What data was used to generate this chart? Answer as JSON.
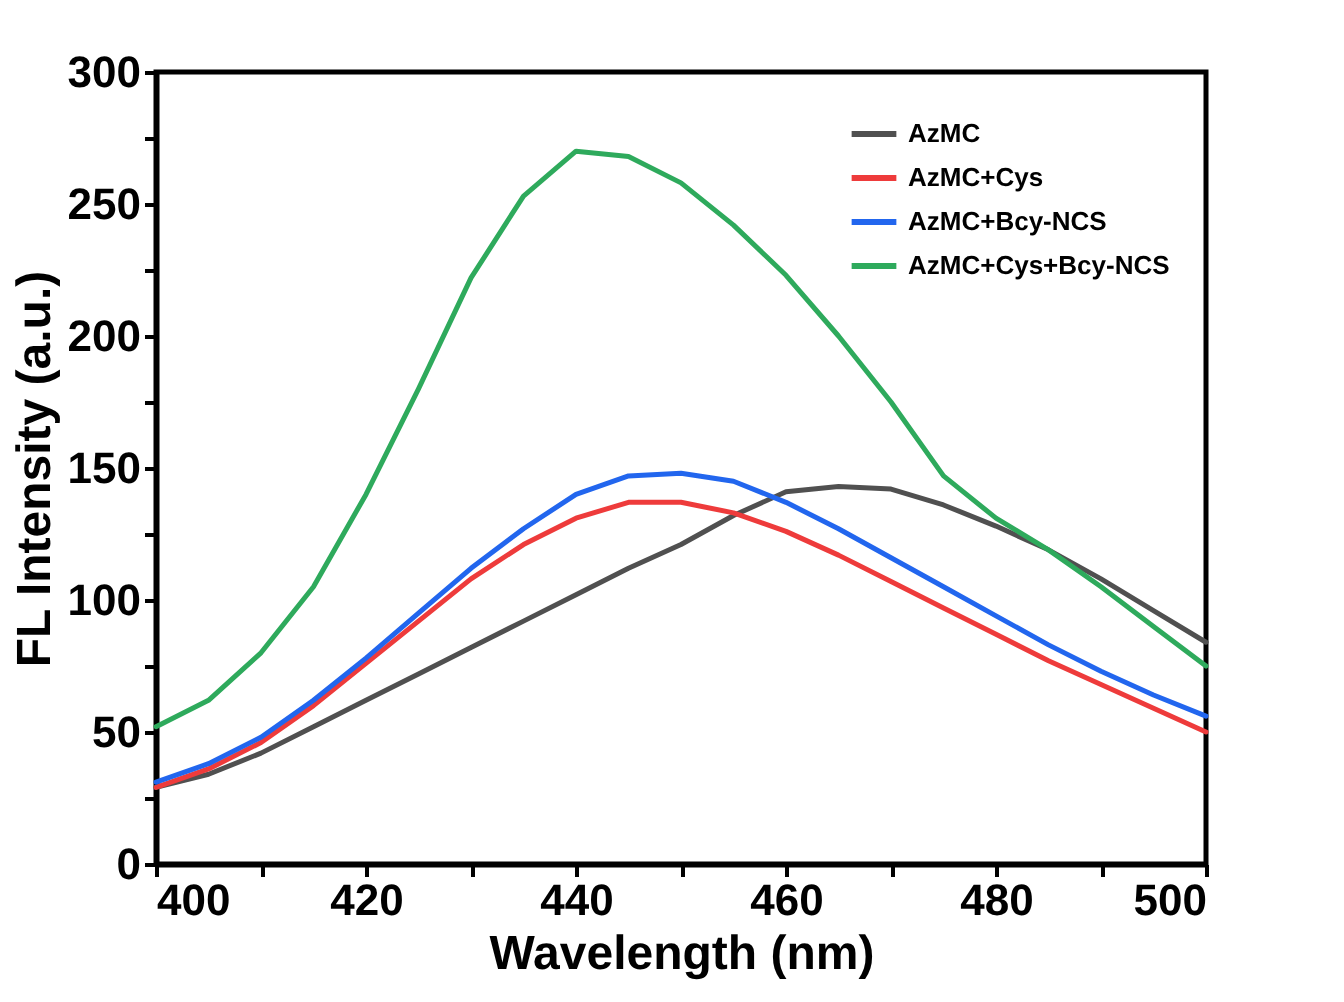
{
  "chart_data": {
    "type": "line",
    "xlabel": "Wavelength (nm)",
    "ylabel": "FL Intensity (a.u.)",
    "x": [
      400,
      405,
      410,
      415,
      420,
      425,
      430,
      435,
      440,
      445,
      450,
      455,
      460,
      465,
      470,
      475,
      480,
      485,
      490,
      495,
      500
    ],
    "xlim": [
      400,
      500
    ],
    "ylim": [
      0,
      300
    ],
    "xticks": [
      400,
      {
        "value": 410,
        "label": null
      },
      420,
      {
        "value": 430,
        "label": null
      },
      440,
      {
        "value": 450,
        "label": null
      },
      460,
      {
        "value": 470,
        "label": null
      },
      480,
      {
        "value": 490,
        "label": null
      },
      500
    ],
    "yticks": [
      0,
      {
        "value": 25,
        "label": null
      },
      50,
      {
        "value": 75,
        "label": null
      },
      100,
      {
        "value": 125,
        "label": null
      },
      150,
      {
        "value": 175,
        "label": null
      },
      200,
      {
        "value": 225,
        "label": null
      },
      250,
      {
        "value": 275,
        "label": null
      },
      300
    ],
    "legend": "top right",
    "grid": false,
    "marker": "none",
    "line_style": "solid",
    "series": [
      {
        "name": "AzMC",
        "color": "#505050",
        "values": [
          29,
          34,
          42,
          52,
          62,
          72,
          82,
          92,
          102,
          112,
          121,
          132,
          141,
          143,
          142,
          136,
          128,
          119,
          108,
          96,
          84
        ]
      },
      {
        "name": "AzMC+Cys",
        "color": "#ee3b3b",
        "values": [
          29,
          36,
          46,
          60,
          76,
          92,
          108,
          121,
          131,
          137,
          137,
          133,
          126,
          117,
          107,
          97,
          87,
          77,
          68,
          59,
          50
        ]
      },
      {
        "name": "AzMC+Bcy-NCS",
        "color": "#2266ee",
        "values": [
          31,
          38,
          48,
          62,
          78,
          95,
          112,
          127,
          140,
          147,
          148,
          145,
          137,
          127,
          116,
          105,
          94,
          83,
          73,
          64,
          56
        ]
      },
      {
        "name": "AzMC+Cys+Bcy-NCS",
        "color": "#2eaa5c",
        "values": [
          52,
          62,
          80,
          105,
          140,
          180,
          222,
          253,
          270,
          268,
          258,
          242,
          223,
          200,
          175,
          147,
          131,
          119,
          105,
          90,
          75
        ]
      }
    ]
  }
}
